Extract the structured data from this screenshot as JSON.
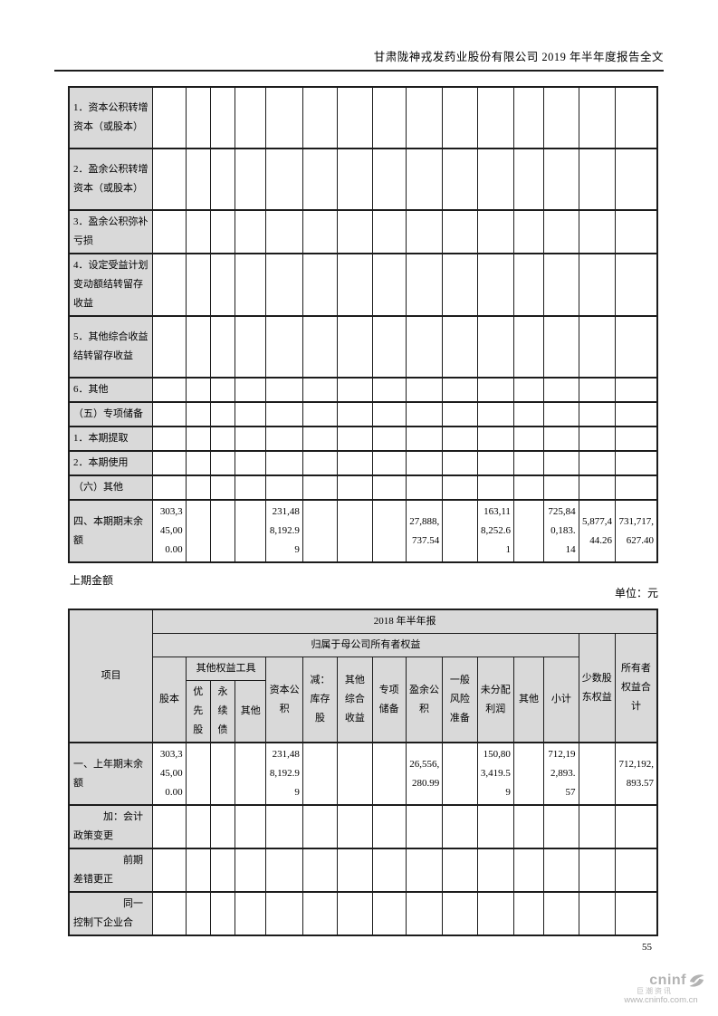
{
  "header": {
    "title": "甘肃陇神戎发药业股份有限公司 2019 年半年度报告全文"
  },
  "table1": {
    "rows": [
      {
        "label": "1．资本公积转增资本（或股本）",
        "values": [
          "",
          "",
          "",
          "",
          "",
          "",
          "",
          "",
          "",
          "",
          "",
          "",
          "",
          "",
          ""
        ]
      },
      {
        "label": "2．盈余公积转增资本（或股本）",
        "values": [
          "",
          "",
          "",
          "",
          "",
          "",
          "",
          "",
          "",
          "",
          "",
          "",
          "",
          "",
          ""
        ]
      },
      {
        "label": "3．盈余公积弥补亏损",
        "values": [
          "",
          "",
          "",
          "",
          "",
          "",
          "",
          "",
          "",
          "",
          "",
          "",
          "",
          "",
          ""
        ]
      },
      {
        "label": "4．设定受益计划变动额结转留存收益",
        "values": [
          "",
          "",
          "",
          "",
          "",
          "",
          "",
          "",
          "",
          "",
          "",
          "",
          "",
          "",
          ""
        ]
      },
      {
        "label": "5．其他综合收益结转留存收益",
        "values": [
          "",
          "",
          "",
          "",
          "",
          "",
          "",
          "",
          "",
          "",
          "",
          "",
          "",
          "",
          ""
        ]
      },
      {
        "label": "6．其他",
        "values": [
          "",
          "",
          "",
          "",
          "",
          "",
          "",
          "",
          "",
          "",
          "",
          "",
          "",
          "",
          ""
        ]
      },
      {
        "label": "（五）专项储备",
        "values": [
          "",
          "",
          "",
          "",
          "",
          "",
          "",
          "",
          "",
          "",
          "",
          "",
          "",
          "",
          ""
        ]
      },
      {
        "label": "1．本期提取",
        "values": [
          "",
          "",
          "",
          "",
          "",
          "",
          "",
          "",
          "",
          "",
          "",
          "",
          "",
          "",
          ""
        ]
      },
      {
        "label": "2．本期使用",
        "values": [
          "",
          "",
          "",
          "",
          "",
          "",
          "",
          "",
          "",
          "",
          "",
          "",
          "",
          "",
          ""
        ]
      },
      {
        "label": "（六）其他",
        "values": [
          "",
          "",
          "",
          "",
          "",
          "",
          "",
          "",
          "",
          "",
          "",
          "",
          "",
          "",
          ""
        ]
      },
      {
        "label": "四、本期期末余额",
        "values": [
          "303,345,000.00",
          "",
          "",
          "",
          "231,488,192.99",
          "",
          "",
          "",
          "27,888,737.54",
          "",
          "163,118,252.61",
          "",
          "725,840,183.14",
          "5,877,444.26",
          "731,717,627.40"
        ]
      }
    ]
  },
  "between": {
    "section_label": "上期金额",
    "unit_label": "单位：元"
  },
  "table2": {
    "header": {
      "item_col": "项目",
      "period": "2018 年半年报",
      "parent_equity": "归属于母公司所有者权益",
      "share_capital": "股本",
      "other_equity_instruments": "其他权益工具",
      "preferred_stock": "优先股",
      "perpetual_bond": "永续债",
      "other_instrument": "其他",
      "capital_reserve": "资本公积",
      "less_treasury_stock": "减：库存股",
      "other_comprehensive_income": "其他综合收益",
      "special_reserve": "专项储备",
      "surplus_reserve": "盈余公积",
      "general_risk_reserve": "一般风险准备",
      "retained_profit": "未分配利润",
      "other": "其他",
      "subtotal": "小计",
      "minority_interest": "少数股东权益",
      "total_equity": "所有者权益合计"
    },
    "rows": [
      {
        "label": "一、上年期末余额",
        "values": [
          "303,345,000.00",
          "",
          "",
          "",
          "231,488,192.99",
          "",
          "",
          "",
          "26,556,280.99",
          "",
          "150,803,419.59",
          "",
          "712,192,893.57",
          "",
          "712,192,893.57"
        ]
      },
      {
        "label": "加：会计政策变更",
        "values": [
          "",
          "",
          "",
          "",
          "",
          "",
          "",
          "",
          "",
          "",
          "",
          "",
          "",
          "",
          ""
        ]
      },
      {
        "label": "前期差错更正",
        "values": [
          "",
          "",
          "",
          "",
          "",
          "",
          "",
          "",
          "",
          "",
          "",
          "",
          "",
          "",
          ""
        ]
      },
      {
        "label": "同一控制下企业合",
        "values": [
          "",
          "",
          "",
          "",
          "",
          "",
          "",
          "",
          "",
          "",
          "",
          "",
          "",
          "",
          ""
        ]
      }
    ]
  },
  "footer": {
    "page_number": "55",
    "logo": {
      "brand": "cninf",
      "chinese": "巨潮资讯",
      "url": "www.cninfo.com.cn"
    }
  }
}
